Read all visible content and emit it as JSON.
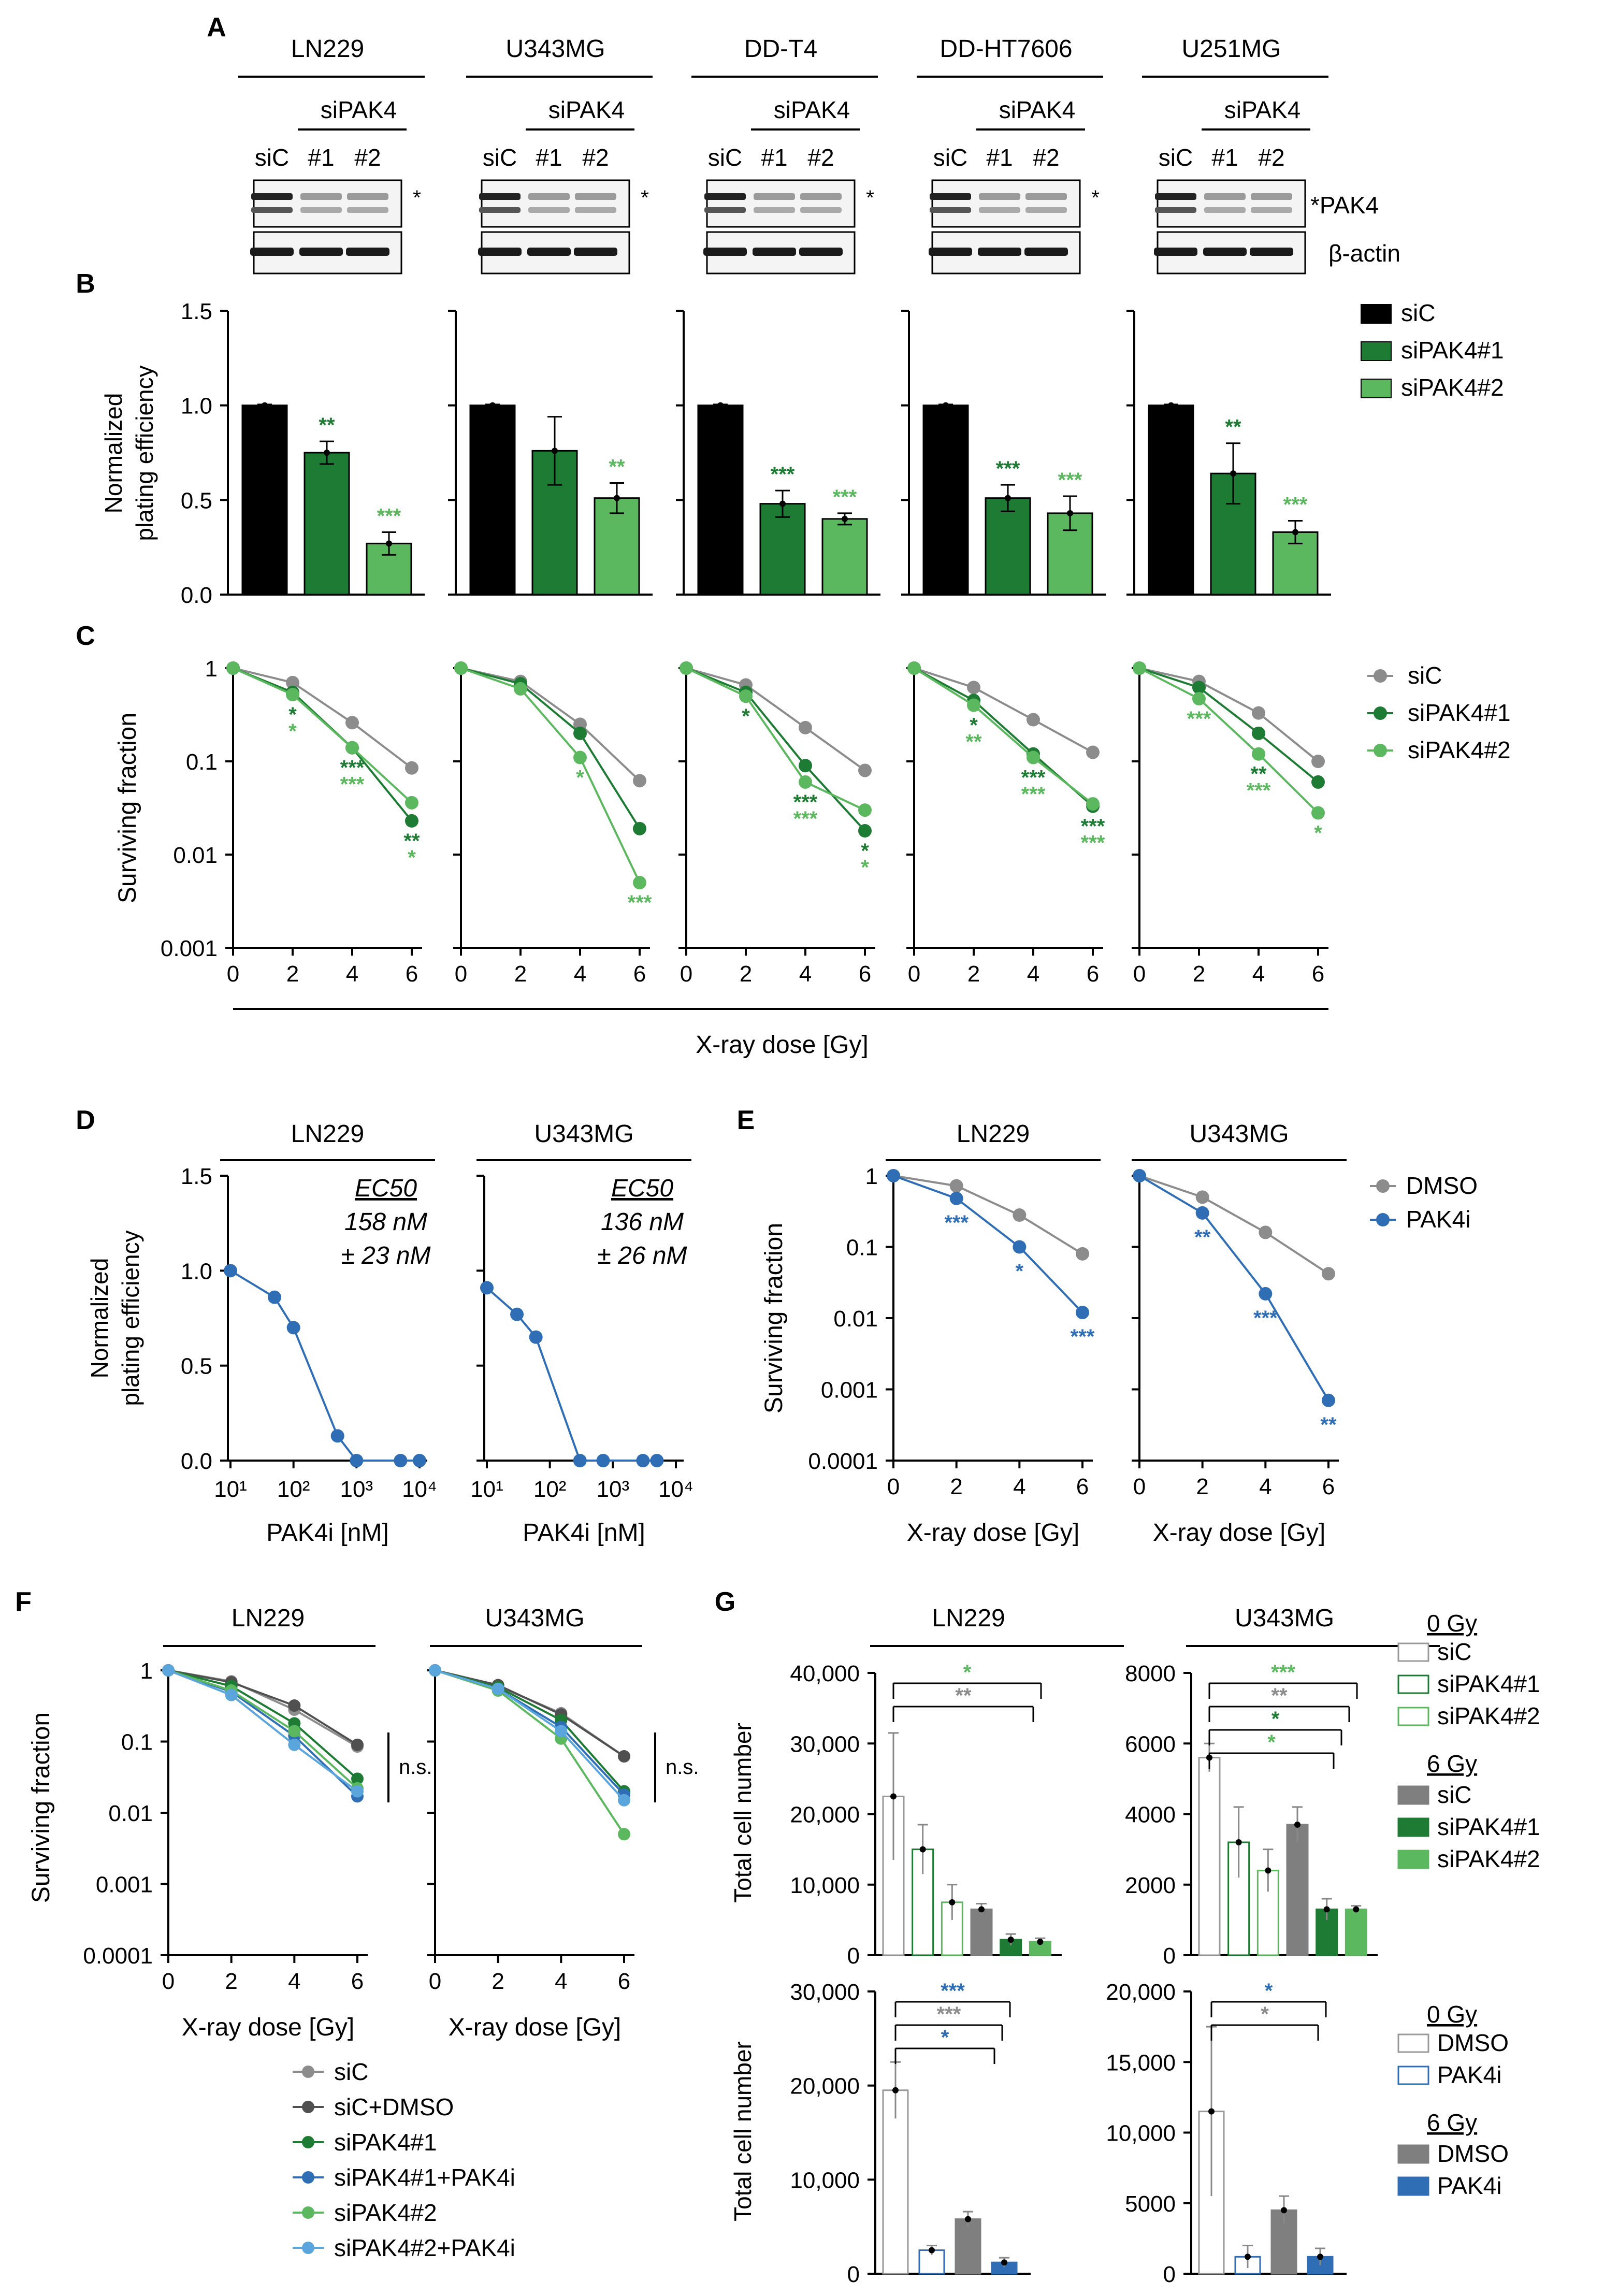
{
  "panels": {
    "A": "A",
    "B": "B",
    "C": "C",
    "D": "D",
    "E": "E",
    "F": "F",
    "G": "G"
  },
  "cell_lines": [
    "LN229",
    "U343MG",
    "DD-T4",
    "DD-HT7606",
    "U251MG"
  ],
  "blot": {
    "sipak4": "siPAK4",
    "lanes": [
      "siC",
      "#1",
      "#2"
    ],
    "star": "*",
    "pak4_label": "*PAK4",
    "actin_label": "β-actin"
  },
  "colors": {
    "siC": "#000000",
    "siPAK4_1": "#1e7b34",
    "siPAK4_2": "#5cb85f",
    "grey": "#8c8c8c",
    "darkgrey": "#505050",
    "blue": "#2f6db5",
    "lightblue": "#5aa5dc",
    "grey_bar": "#7f7f7f"
  },
  "chart_data": [
    {
      "panel": "B",
      "type": "bar",
      "ylabel": "Normalized plating efficiency",
      "ylim": [
        0,
        1.5
      ],
      "yticks": [
        "0.0",
        "0.5",
        "1.0",
        "1.5"
      ],
      "legend": [
        "siC",
        "siPAK4#1",
        "siPAK4#2"
      ],
      "subplots": [
        {
          "title": "LN229",
          "values": [
            1.0,
            0.75,
            0.27
          ],
          "errors": [
            0.005,
            0.06,
            0.06
          ],
          "sig": [
            "",
            "**",
            "***"
          ]
        },
        {
          "title": "U343MG",
          "values": [
            1.0,
            0.76,
            0.51
          ],
          "errors": [
            0.005,
            0.18,
            0.08
          ],
          "sig": [
            "",
            "",
            "**"
          ]
        },
        {
          "title": "DD-T4",
          "values": [
            1.0,
            0.48,
            0.4
          ],
          "errors": [
            0.005,
            0.07,
            0.03
          ],
          "sig": [
            "",
            "***",
            "***"
          ]
        },
        {
          "title": "DD-HT7606",
          "values": [
            1.0,
            0.51,
            0.43
          ],
          "errors": [
            0.005,
            0.07,
            0.09
          ],
          "sig": [
            "",
            "***",
            "***"
          ]
        },
        {
          "title": "U251MG",
          "values": [
            1.0,
            0.64,
            0.33
          ],
          "errors": [
            0.005,
            0.16,
            0.06
          ],
          "sig": [
            "",
            "**",
            "***"
          ]
        }
      ]
    },
    {
      "panel": "C",
      "type": "line",
      "ylabel": "Surviving fraction",
      "xlabel": "X-ray dose [Gy]",
      "yscale": "log",
      "ylim": [
        0.001,
        1
      ],
      "yticks": [
        "0.001",
        "0.01",
        "0.1",
        "1"
      ],
      "x": [
        0,
        2,
        4,
        6
      ],
      "xticks": [
        "0",
        "2",
        "4",
        "6"
      ],
      "legend": [
        "siC",
        "siPAK4#1",
        "siPAK4#2"
      ],
      "subplots": [
        {
          "title": "LN229",
          "series": [
            [
              1,
              0.7,
              0.26,
              0.085
            ],
            [
              1,
              0.55,
              0.14,
              0.023
            ],
            [
              1,
              0.52,
              0.14,
              0.036
            ]
          ],
          "sig1": [
            "",
            "*",
            "***",
            "**"
          ],
          "sig2": [
            "",
            "*",
            "***",
            "*"
          ]
        },
        {
          "title": "U343MG",
          "series": [
            [
              1,
              0.72,
              0.25,
              0.062
            ],
            [
              1,
              0.68,
              0.2,
              0.019
            ],
            [
              1,
              0.6,
              0.11,
              0.005
            ]
          ],
          "sig1": [
            "",
            "",
            "",
            ""
          ],
          "sig2": [
            "",
            "",
            "*",
            "***"
          ]
        },
        {
          "title": "DD-T4",
          "series": [
            [
              1,
              0.66,
              0.23,
              0.08
            ],
            [
              1,
              0.55,
              0.09,
              0.018
            ],
            [
              1,
              0.5,
              0.06,
              0.03
            ]
          ],
          "sig1": [
            "",
            "*",
            "***",
            "*"
          ],
          "sig2": [
            "",
            "",
            "***",
            "*"
          ]
        },
        {
          "title": "DD-HT7606",
          "series": [
            [
              1,
              0.62,
              0.28,
              0.125
            ],
            [
              1,
              0.45,
              0.12,
              0.033
            ],
            [
              1,
              0.4,
              0.11,
              0.035
            ]
          ],
          "sig1": [
            "",
            "*",
            "***",
            "***"
          ],
          "sig2": [
            "",
            "**",
            "***",
            "***"
          ]
        },
        {
          "title": "U251MG",
          "series": [
            [
              1,
              0.72,
              0.33,
              0.1
            ],
            [
              1,
              0.62,
              0.2,
              0.06
            ],
            [
              1,
              0.47,
              0.12,
              0.028
            ]
          ],
          "sig1": [
            "",
            "",
            "**",
            ""
          ],
          "sig2": [
            "",
            "***",
            "***",
            "*"
          ]
        }
      ]
    },
    {
      "panel": "D",
      "type": "line",
      "ylabel": "Normalized plating efficiency",
      "xlabel": "PAK4i [nM]",
      "xscale": "log",
      "ylim": [
        0,
        1.5
      ],
      "yticks": [
        "0.0",
        "0.5",
        "1.0",
        "1.5"
      ],
      "xticks": [
        "10¹",
        "10²",
        "10³",
        "10⁴"
      ],
      "ec50_label": "EC50",
      "subplots": [
        {
          "title": "LN229",
          "x": [
            10,
            50,
            100,
            500,
            1000,
            5000,
            10000
          ],
          "y": [
            1.0,
            0.86,
            0.7,
            0.13,
            0.0,
            0.0,
            0.0
          ],
          "ec50": "158 nM",
          "ec50_err": "± 23 nM"
        },
        {
          "title": "U343MG",
          "x": [
            10,
            30,
            60,
            300,
            700,
            3000,
            5000
          ],
          "y": [
            0.91,
            0.77,
            0.65,
            0.0,
            0.0,
            0.0,
            0.0
          ],
          "ec50": "136 nM",
          "ec50_err": "± 26 nM"
        }
      ]
    },
    {
      "panel": "E",
      "type": "line",
      "ylabel": "Surviving fraction",
      "xlabel": "X-ray dose [Gy]",
      "yscale": "log",
      "ylim": [
        0.0001,
        1
      ],
      "yticks": [
        "0.0001",
        "0.001",
        "0.01",
        "0.1",
        "1"
      ],
      "x": [
        0,
        2,
        4,
        6
      ],
      "xticks": [
        "0",
        "2",
        "4",
        "6"
      ],
      "legend": [
        "DMSO",
        "PAK4i"
      ],
      "subplots": [
        {
          "title": "LN229",
          "series": [
            [
              1,
              0.72,
              0.28,
              0.08
            ],
            [
              1,
              0.48,
              0.1,
              0.012
            ]
          ],
          "sig": [
            "",
            "***",
            "*",
            "***"
          ]
        },
        {
          "title": "U343MG",
          "series": [
            [
              1,
              0.5,
              0.16,
              0.042
            ],
            [
              1,
              0.3,
              0.022,
              0.0007
            ]
          ],
          "sig": [
            "",
            "**",
            "***",
            "**"
          ]
        }
      ]
    },
    {
      "panel": "F",
      "type": "line",
      "ylabel": "Surviving fraction",
      "xlabel": "X-ray dose [Gy]",
      "yscale": "log",
      "ylim": [
        0.0001,
        1
      ],
      "yticks": [
        "0.0001",
        "0.001",
        "0.01",
        "0.1",
        "1"
      ],
      "x": [
        0,
        2,
        4,
        6
      ],
      "xticks": [
        "0",
        "2",
        "4",
        "6"
      ],
      "legend": [
        "siC",
        "siC+DMSO",
        "siPAK4#1",
        "siPAK4#1+PAK4i",
        "siPAK4#2",
        "siPAK4#2+PAK4i"
      ],
      "ns": "n.s.",
      "subplots": [
        {
          "title": "LN229",
          "series": [
            [
              1,
              0.7,
              0.28,
              0.085
            ],
            [
              1,
              0.68,
              0.32,
              0.09
            ],
            [
              1,
              0.6,
              0.18,
              0.03
            ],
            [
              1,
              0.5,
              0.12,
              0.017
            ],
            [
              1,
              0.52,
              0.14,
              0.022
            ],
            [
              1,
              0.45,
              0.09,
              0.02
            ]
          ]
        },
        {
          "title": "U343MG",
          "series": [
            [
              1,
              0.6,
              0.25,
              0.062
            ],
            [
              1,
              0.62,
              0.24,
              0.062
            ],
            [
              1,
              0.58,
              0.2,
              0.02
            ],
            [
              1,
              0.55,
              0.16,
              0.018
            ],
            [
              1,
              0.52,
              0.11,
              0.005
            ],
            [
              1,
              0.55,
              0.14,
              0.015
            ]
          ]
        }
      ]
    },
    {
      "panel": "G",
      "type": "bar",
      "ylabel": "Total cell number",
      "legend_top": {
        "header0": "0 Gy",
        "header6": "6 Gy",
        "items": [
          "siC",
          "siPAK4#1",
          "siPAK4#2"
        ]
      },
      "legend_bottom": {
        "header0": "0 Gy",
        "header6": "6 Gy",
        "items": [
          "DMSO",
          "PAK4i"
        ]
      },
      "subplots": [
        {
          "title": "LN229",
          "ylim": [
            0,
            40000
          ],
          "yticks": [
            "0",
            "10,000",
            "20,000",
            "30,000",
            "40,000"
          ],
          "values": [
            22500,
            15000,
            7500,
            6500,
            2200,
            1900
          ],
          "errors": [
            9000,
            3500,
            2500,
            800,
            800,
            500
          ],
          "sig": [
            "*",
            "**"
          ]
        },
        {
          "title": "U343MG",
          "ylim": [
            0,
            8000
          ],
          "yticks": [
            "0",
            "2000",
            "4000",
            "6000",
            "8000"
          ],
          "values": [
            5600,
            3200,
            2400,
            3700,
            1300,
            1300
          ],
          "errors": [
            400,
            1000,
            600,
            500,
            300,
            100
          ],
          "sig": [
            "***",
            "**",
            "*",
            "*"
          ]
        },
        {
          "title": "",
          "ylim": [
            0,
            30000
          ],
          "yticks": [
            "0",
            "10,000",
            "20,000",
            "30,000"
          ],
          "values": [
            19500,
            2500,
            5800,
            1200
          ],
          "errors": [
            3000,
            500,
            800,
            500
          ],
          "sig": [
            "***",
            "***",
            "*"
          ]
        },
        {
          "title": "",
          "ylim": [
            0,
            20000
          ],
          "yticks": [
            "0",
            "5000",
            "10,000",
            "15,000",
            "20,000"
          ],
          "values": [
            11500,
            1200,
            4500,
            1200
          ],
          "errors": [
            6000,
            800,
            1000,
            600
          ],
          "sig": [
            "*",
            "*"
          ]
        }
      ]
    }
  ]
}
